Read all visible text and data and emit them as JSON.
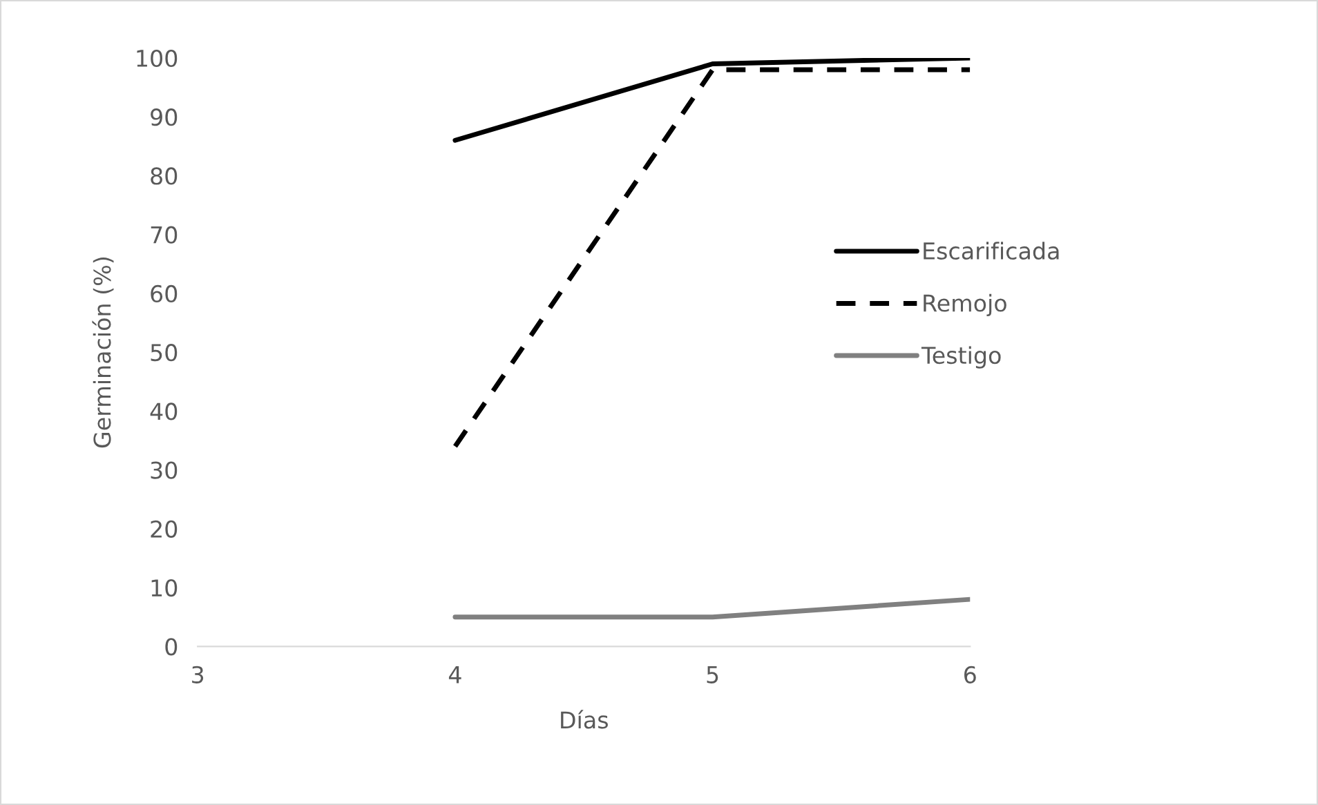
{
  "chart_data": {
    "type": "line",
    "xlabel": "Días",
    "ylabel": "Germinación (%)",
    "x": [
      4,
      5,
      6
    ],
    "series": [
      {
        "name": "Escarificada",
        "color": "#000000",
        "values": [
          86,
          99,
          100
        ],
        "line_style": "solid"
      },
      {
        "name": "Remojo",
        "color": "#000000",
        "values": [
          34,
          98,
          98
        ],
        "line_style": "dashed"
      },
      {
        "name": "Testigo",
        "color": "#808080",
        "values": [
          5,
          5,
          8
        ],
        "line_style": "solid"
      }
    ],
    "xlim": [
      3,
      6
    ],
    "xticks": [
      3,
      4,
      5,
      6
    ],
    "ylim": [
      0,
      100
    ],
    "yticks": [
      0,
      10,
      20,
      30,
      40,
      50,
      60,
      70,
      80,
      90,
      100
    ],
    "grid": false,
    "legend": "right",
    "marker": "none"
  }
}
